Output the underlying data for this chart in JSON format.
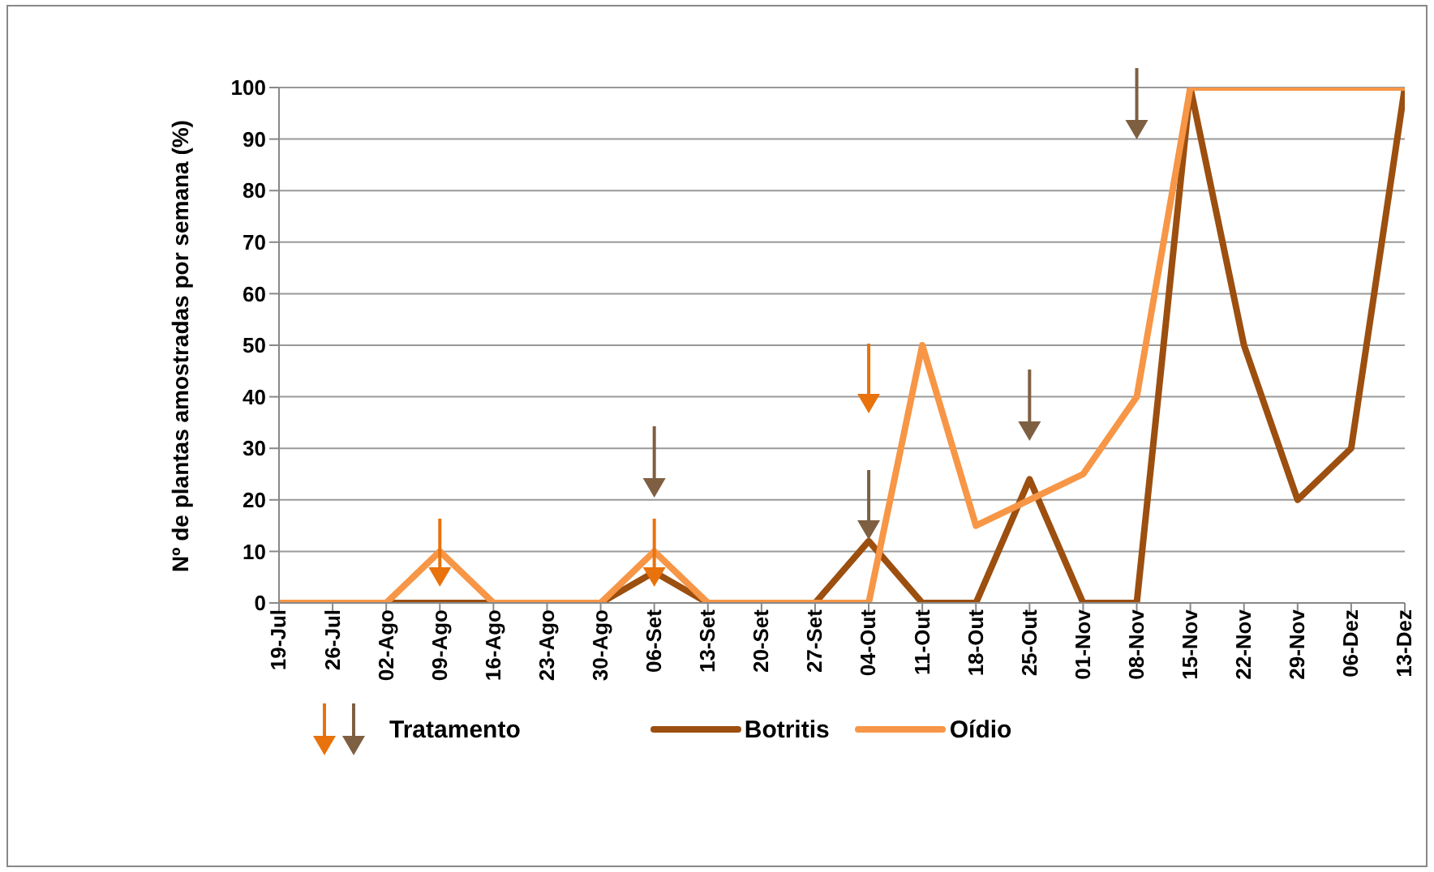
{
  "chart_data": {
    "type": "line",
    "ylabel": "Nº de plantas amostradas por semana (%)",
    "categories": [
      "19-Jul",
      "26-Jul",
      "02-Ago",
      "09-Ago",
      "16-Ago",
      "23-Ago",
      "30-Ago",
      "06-Set",
      "13-Set",
      "20-Set",
      "27-Set",
      "04-Out",
      "11-Out",
      "18-Out",
      "25-Out",
      "01-Nov",
      "08-Nov",
      "15-Nov",
      "22-Nov",
      "29-Nov",
      "06-Dez",
      "13-Dez"
    ],
    "series": [
      {
        "name": "Botritis",
        "color": "#9c4f0f",
        "values": [
          0,
          0,
          0,
          0,
          0,
          0,
          0,
          6,
          0,
          0,
          0,
          12,
          0,
          0,
          24,
          0,
          0,
          100,
          50,
          20,
          30,
          100
        ]
      },
      {
        "name": "Oídio",
        "color": "#f79646",
        "values": [
          0,
          0,
          0,
          10,
          0,
          0,
          0,
          10,
          0,
          0,
          0,
          0,
          50,
          15,
          20,
          25,
          40,
          100,
          100,
          100,
          100,
          100
        ]
      }
    ],
    "ylim": [
      0,
      100
    ],
    "yticks": [
      0,
      10,
      20,
      30,
      40,
      50,
      60,
      70,
      80,
      90,
      100
    ],
    "grid": "y",
    "legend": "bottom",
    "marker": "none",
    "line_style": "solid",
    "annotations": [
      "Tratamento"
    ]
  }
}
